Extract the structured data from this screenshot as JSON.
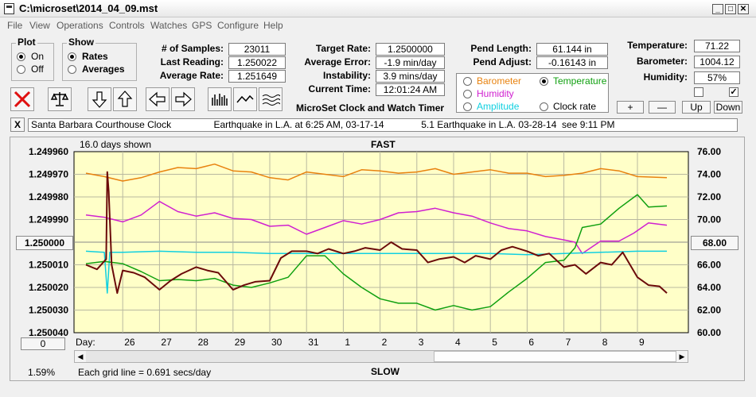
{
  "window": {
    "title": "C:\\microset\\2014_04_09.mst"
  },
  "menu": [
    "File",
    "View",
    "Operations",
    "Controls",
    "Watches",
    "GPS",
    "Configure",
    "Help"
  ],
  "plot_group": {
    "label": "Plot",
    "on": "On",
    "off": "Off",
    "selected": "On"
  },
  "show_group": {
    "label": "Show",
    "rates": "Rates",
    "averages": "Averages",
    "selected": "Rates"
  },
  "stats": {
    "samples_label": "# of Samples:",
    "samples": "23011",
    "last_label": "Last Reading:",
    "last": "1.250022",
    "avg_label": "Average Rate:",
    "avg": "1.251649",
    "target_label": "Target Rate:",
    "target": "1.2500000",
    "avgerr_label": "Average Error:",
    "avgerr": "-1.9 min/day",
    "instab_label": "Instability:",
    "instab": "3.9 mins/day",
    "time_label": "Current Time:",
    "time": "12:01:24 AM",
    "pendlen_label": "Pend Length:",
    "pendlen": "61.144 in",
    "pendadj_label": "Pend Adjust:",
    "pendadj": "-0.16143 in",
    "temp_label": "Temperature:",
    "temp": "71.22",
    "baro_label": "Barometer:",
    "baro": "1004.12",
    "hum_label": "Humidity:",
    "hum": "57%"
  },
  "sensor_options": {
    "barometer": "Barometer",
    "temperature": "Temperature",
    "humidity": "Humidity",
    "amplitude": "Amplitude",
    "clockrate": "Clock rate",
    "selected": "Temperature",
    "colors": {
      "barometer": "#e8820f",
      "temperature": "#10a010",
      "humidity": "#d020d0",
      "amplitude": "#10d0e0",
      "clockrate": "#000000"
    }
  },
  "app_caption": "MicroSet Clock and Watch Timer",
  "buttons": {
    "plus": "+",
    "minus": "—",
    "up": "Up",
    "down": "Down",
    "close_notes": "X",
    "left_zero": "0"
  },
  "notes": "Santa Barbara Courthouse Clock                Earthquake in L.A. at 6:25 AM, 03-17-14              5.1 Earthquake in L.A. 03-28-14  see 9:11 PM",
  "chart_header": {
    "days_shown": "16.0 days shown",
    "top": "FAST",
    "bottom": "SLOW",
    "grid_note": "Each grid line = 0.691 secs/day",
    "percent": "1.59%",
    "day_label": "Day:",
    "left_mid": "1.250000",
    "right_mid": "68.00"
  },
  "chart_data": {
    "type": "line",
    "x_ticks": [
      "26",
      "27",
      "28",
      "29",
      "30",
      "31",
      "1",
      "2",
      "3",
      "4",
      "5",
      "6",
      "7",
      "8",
      "9"
    ],
    "y_left_ticks": [
      "1.249960",
      "1.249970",
      "1.249980",
      "1.249990",
      "1.250000",
      "1.250010",
      "1.250020",
      "1.250030",
      "1.250040"
    ],
    "y_right_ticks": [
      "76.00",
      "74.00",
      "72.00",
      "70.00",
      "68.00",
      "66.00",
      "64.00",
      "62.00",
      "60.00"
    ],
    "ylim_left": [
      1.24996,
      1.25004
    ],
    "ylim_right": [
      60,
      76
    ],
    "x_range": [
      25.0,
      10.0
    ],
    "series": [
      {
        "color": "#e8820f",
        "x": [
          25.0,
          25.5,
          26.0,
          26.5,
          27.0,
          27.5,
          28.0,
          28.5,
          29.0,
          29.5,
          30.0,
          30.5,
          31.0,
          31.5,
          1.0,
          1.5,
          2.0,
          2.5,
          3.0,
          3.5,
          4.0,
          4.5,
          5.0,
          5.5,
          6.0,
          6.5,
          7.0,
          7.5,
          8.0,
          8.5,
          9.0,
          9.8
        ],
        "y": [
          74.1,
          73.8,
          73.4,
          73.7,
          74.2,
          74.6,
          74.5,
          74.9,
          74.3,
          74.2,
          73.7,
          73.5,
          74.2,
          74.0,
          73.8,
          74.4,
          74.3,
          74.1,
          74.2,
          74.5,
          74.0,
          74.2,
          74.4,
          74.1,
          74.1,
          73.8,
          73.9,
          74.1,
          74.5,
          74.3,
          73.8,
          73.7
        ]
      },
      {
        "color": "#d020d0",
        "x": [
          25.0,
          25.5,
          26.0,
          26.5,
          27.0,
          27.5,
          28.0,
          28.5,
          29.0,
          29.5,
          30.0,
          30.5,
          31.0,
          31.5,
          1.0,
          1.5,
          2.0,
          2.5,
          3.0,
          3.5,
          4.0,
          4.5,
          5.0,
          5.5,
          6.0,
          6.5,
          7.0,
          7.3,
          7.5,
          8.0,
          8.5,
          8.9,
          9.3,
          9.8
        ],
        "y": [
          70.4,
          70.2,
          69.8,
          70.4,
          71.6,
          70.7,
          70.3,
          70.6,
          70.1,
          70.0,
          69.4,
          69.5,
          68.7,
          69.3,
          69.9,
          69.6,
          70.0,
          70.6,
          70.7,
          71.0,
          70.6,
          70.3,
          69.7,
          69.2,
          69.0,
          68.5,
          68.2,
          68.0,
          67.0,
          68.1,
          68.1,
          68.8,
          69.7,
          69.5
        ]
      },
      {
        "color": "#10d0e0",
        "x": [
          25.0,
          25.5,
          25.58,
          25.65,
          26.0,
          27.0,
          28.0,
          29.0,
          30.0,
          31.0,
          1.0,
          2.0,
          3.0,
          4.0,
          5.0,
          6.0,
          7.0,
          8.0,
          9.0,
          9.8
        ],
        "y": [
          67.2,
          67.1,
          63.5,
          67.1,
          67.1,
          67.2,
          67.1,
          67.1,
          67.0,
          67.0,
          67.0,
          67.0,
          67.0,
          67.0,
          67.0,
          66.9,
          67.0,
          67.1,
          67.2,
          67.2
        ]
      },
      {
        "color": "#10a010",
        "x": [
          25.0,
          25.5,
          26.0,
          26.5,
          27.0,
          27.5,
          28.0,
          28.5,
          29.0,
          29.5,
          30.0,
          30.5,
          31.0,
          31.5,
          1.0,
          1.5,
          2.0,
          2.5,
          3.0,
          3.5,
          4.0,
          4.5,
          5.0,
          5.5,
          6.0,
          6.5,
          7.0,
          7.3,
          7.5,
          8.0,
          8.5,
          9.0,
          9.3,
          9.8
        ],
        "y": [
          66.1,
          66.3,
          66.1,
          65.4,
          64.6,
          64.7,
          64.6,
          64.8,
          64.2,
          64.0,
          64.4,
          64.9,
          66.8,
          66.8,
          65.2,
          64.0,
          63.0,
          62.6,
          62.6,
          62.0,
          62.4,
          62.0,
          62.3,
          63.6,
          64.8,
          66.2,
          66.4,
          67.5,
          69.3,
          69.6,
          71.0,
          72.2,
          71.1,
          71.2
        ]
      },
      {
        "color": "#6b0a0a",
        "x": [
          25.0,
          25.3,
          25.55,
          25.58,
          25.62,
          25.7,
          25.85,
          26.0,
          26.3,
          26.6,
          27.0,
          27.3,
          27.6,
          28.0,
          28.3,
          28.6,
          29.0,
          29.3,
          29.6,
          30.0,
          30.3,
          30.6,
          31.0,
          31.3,
          31.6,
          1.0,
          1.3,
          1.6,
          2.0,
          2.3,
          2.6,
          3.0,
          3.3,
          3.6,
          4.0,
          4.3,
          4.6,
          5.0,
          5.3,
          5.6,
          6.0,
          6.3,
          6.6,
          7.0,
          7.3,
          7.6,
          8.0,
          8.3,
          8.6,
          9.0,
          9.3,
          9.6,
          9.8
        ],
        "y": [
          66.0,
          65.6,
          66.5,
          74.2,
          72.5,
          66.0,
          63.5,
          65.5,
          65.3,
          64.9,
          63.8,
          64.6,
          65.2,
          65.8,
          65.5,
          65.3,
          63.8,
          64.2,
          64.5,
          64.6,
          66.6,
          67.2,
          67.2,
          67.0,
          67.4,
          67.0,
          67.2,
          67.5,
          67.3,
          68.0,
          67.4,
          67.3,
          66.2,
          66.5,
          66.7,
          66.2,
          66.8,
          66.5,
          67.3,
          67.6,
          67.2,
          66.8,
          67.0,
          65.8,
          66.0,
          65.2,
          66.2,
          66.0,
          67.1,
          64.9,
          64.2,
          64.1,
          63.5
        ]
      }
    ]
  }
}
